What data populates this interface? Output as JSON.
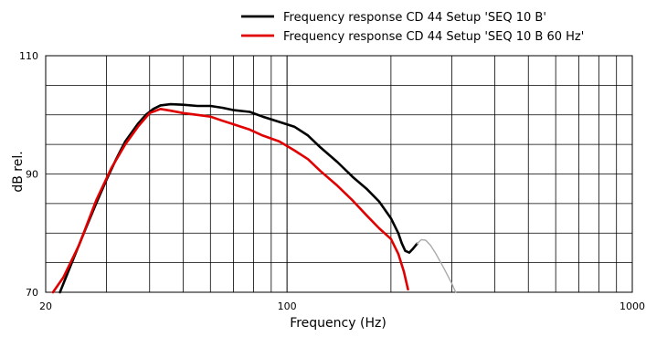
{
  "chart_data": {
    "type": "line",
    "xlabel": "Frequency (Hz)",
    "ylabel": "dB rel.",
    "x_scale": "log",
    "xlim": [
      20,
      1000
    ],
    "ylim": [
      70,
      110
    ],
    "x_ticks": [
      {
        "value": 20,
        "label": "20"
      },
      {
        "value": 100,
        "label": "100"
      },
      {
        "value": 1000,
        "label": "1000"
      }
    ],
    "y_ticks": [
      {
        "value": 70,
        "label": "70"
      },
      {
        "value": 90,
        "label": "90"
      },
      {
        "value": 110,
        "label": "110"
      }
    ],
    "grid": true,
    "legend_position": "top-right",
    "series": [
      {
        "name": "Frequency response CD 44 Setup 'SEQ 10 B'",
        "color": "#000000",
        "points": [
          [
            22.0,
            70.0
          ],
          [
            24.0,
            75.5
          ],
          [
            26.0,
            80.5
          ],
          [
            28.0,
            85.0
          ],
          [
            30.0,
            89.0
          ],
          [
            32.0,
            92.5
          ],
          [
            34.0,
            95.5
          ],
          [
            37.0,
            98.5
          ],
          [
            39.0,
            100.0
          ],
          [
            41.0,
            101.0
          ],
          [
            43.0,
            101.6
          ],
          [
            46.0,
            101.8
          ],
          [
            50.0,
            101.7
          ],
          [
            55.0,
            101.5
          ],
          [
            60.0,
            101.5
          ],
          [
            65.0,
            101.2
          ],
          [
            70.0,
            100.8
          ],
          [
            78.0,
            100.5
          ],
          [
            85.0,
            99.7
          ],
          [
            95.0,
            98.8
          ],
          [
            105.0,
            98.0
          ],
          [
            115.0,
            96.5
          ],
          [
            125.0,
            94.5
          ],
          [
            140.0,
            92.0
          ],
          [
            155.0,
            89.5
          ],
          [
            170.0,
            87.5
          ],
          [
            185.0,
            85.3
          ],
          [
            200.0,
            82.5
          ],
          [
            210.0,
            80.0
          ],
          [
            215.0,
            78.3
          ],
          [
            220.0,
            77.0
          ],
          [
            226.0,
            76.7
          ],
          [
            232.0,
            77.4
          ],
          [
            238.0,
            78.2
          ]
        ]
      },
      {
        "name": "Frequency response CD 44 Setup 'SEQ 10 B 60 Hz'",
        "color": "#e00000",
        "points": [
          [
            21.0,
            70.0
          ],
          [
            22.5,
            72.5
          ],
          [
            25.0,
            78.0
          ],
          [
            28.0,
            85.5
          ],
          [
            31.0,
            91.0
          ],
          [
            34.0,
            95.0
          ],
          [
            37.0,
            98.0
          ],
          [
            40.0,
            100.3
          ],
          [
            43.0,
            101.0
          ],
          [
            46.0,
            100.7
          ],
          [
            50.0,
            100.3
          ],
          [
            55.0,
            100.0
          ],
          [
            60.0,
            99.7
          ],
          [
            65.0,
            99.0
          ],
          [
            70.0,
            98.4
          ],
          [
            78.0,
            97.5
          ],
          [
            85.0,
            96.5
          ],
          [
            95.0,
            95.5
          ],
          [
            105.0,
            94.0
          ],
          [
            115.0,
            92.5
          ],
          [
            125.0,
            90.5
          ],
          [
            140.0,
            88.0
          ],
          [
            155.0,
            85.5
          ],
          [
            170.0,
            83.0
          ],
          [
            185.0,
            80.8
          ],
          [
            200.0,
            79.0
          ],
          [
            210.0,
            76.5
          ],
          [
            218.0,
            73.5
          ],
          [
            224.0,
            70.5
          ]
        ]
      },
      {
        "name": "",
        "color": "#aaaaaa",
        "points": [
          [
            238.0,
            78.2
          ],
          [
            245.0,
            78.9
          ],
          [
            252.0,
            78.8
          ],
          [
            260.0,
            78.0
          ],
          [
            270.0,
            76.5
          ],
          [
            285.0,
            74.0
          ],
          [
            300.0,
            71.5
          ],
          [
            308.0,
            70.0
          ]
        ]
      }
    ]
  }
}
